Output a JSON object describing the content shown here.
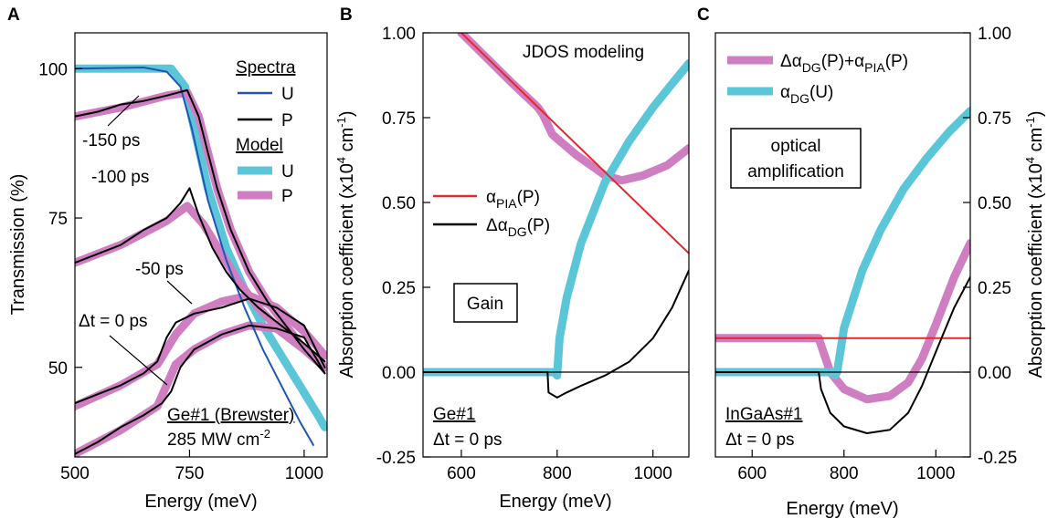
{
  "chart_data": [
    {
      "panel": "A",
      "type": "line",
      "xlabel": "Energy (meV)",
      "ylabel": "Transmission (%)",
      "xlim": [
        500,
        1050
      ],
      "ylim": [
        35,
        106
      ],
      "xticks": [
        500,
        750,
        1000
      ],
      "yticks": [
        50,
        75,
        100
      ],
      "legend": {
        "spectra_title": "Spectra",
        "model_title": "Model",
        "entries": [
          {
            "label": "U",
            "group": "Spectra",
            "color": "#1f56b4"
          },
          {
            "label": "P",
            "group": "Spectra",
            "color": "#000000"
          },
          {
            "label": "U",
            "group": "Model",
            "color": "#5bc6d8"
          },
          {
            "label": "P",
            "group": "Model",
            "color": "#d07ec2"
          }
        ]
      },
      "annotations": [
        "-150 ps",
        "-100 ps",
        "-50 ps",
        "Δt = 0 ps",
        "Ge#1 (Brewster)",
        "285 MW cm-2"
      ],
      "series": [
        {
          "name": "Model U",
          "role": "model",
          "color": "#5bc6d8",
          "x": [
            500,
            650,
            710,
            740,
            760,
            790,
            830,
            870,
            910,
            950,
            990,
            1030,
            1045
          ],
          "y": [
            100,
            100,
            100,
            97,
            90,
            80,
            70,
            63,
            57,
            52,
            47,
            42,
            40
          ]
        },
        {
          "name": "Spectrum U",
          "role": "spectrum",
          "color": "#1f56b4",
          "x": [
            500,
            650,
            700,
            730,
            755,
            790,
            830,
            870,
            910,
            950,
            990,
            1020
          ],
          "y": [
            100,
            100.2,
            99.5,
            97,
            90,
            78,
            68,
            60,
            53,
            47,
            41,
            37
          ]
        },
        {
          "name": "Model P -150 ps",
          "role": "model",
          "color": "#d07ec2",
          "x": [
            500,
            600,
            700,
            745,
            770,
            790,
            810,
            840,
            880,
            920,
            960,
            1000,
            1045
          ],
          "y": [
            92,
            93.5,
            95.5,
            96,
            92,
            86,
            80,
            73,
            66,
            61,
            57,
            53,
            50
          ]
        },
        {
          "name": "Spectrum P -150 ps",
          "role": "spectrum",
          "color": "#000000",
          "x": [
            500,
            550,
            600,
            650,
            700,
            745,
            770,
            790,
            810,
            840,
            880,
            920,
            960,
            1000,
            1045
          ],
          "y": [
            92,
            92.8,
            94,
            94.6,
            95.5,
            96.4,
            92,
            86,
            80,
            73,
            66,
            61,
            57,
            53,
            49
          ]
        },
        {
          "name": "Model P -100 ps",
          "role": "model",
          "color": "#d07ec2",
          "x": [
            500,
            600,
            700,
            745,
            780,
            820,
            860,
            900,
            950,
            1000,
            1045
          ],
          "y": [
            67.5,
            70.5,
            74.5,
            77,
            74,
            69,
            64,
            60,
            56,
            53,
            50
          ]
        },
        {
          "name": "Spectrum P -100 ps",
          "role": "spectrum",
          "color": "#000000",
          "x": [
            500,
            550,
            600,
            650,
            700,
            730,
            750,
            770,
            800,
            830,
            860,
            900,
            950,
            1000,
            1045
          ],
          "y": [
            67.5,
            69,
            70.5,
            73,
            75,
            77.5,
            80,
            75.5,
            70,
            66,
            63,
            60,
            57,
            54,
            51
          ]
        },
        {
          "name": "Model P -50 ps",
          "role": "model",
          "color": "#d07ec2",
          "x": [
            500,
            600,
            680,
            720,
            760,
            820,
            880,
            940,
            1000,
            1045
          ],
          "y": [
            43.5,
            47,
            50.5,
            55.5,
            59,
            61,
            62,
            60,
            56,
            52
          ]
        },
        {
          "name": "Spectrum P -50 ps",
          "role": "spectrum",
          "color": "#000000",
          "x": [
            500,
            550,
            600,
            650,
            680,
            700,
            720,
            760,
            820,
            880,
            940,
            1000,
            1045
          ],
          "y": [
            44,
            45.5,
            47,
            49,
            51,
            55,
            57.5,
            59,
            60,
            61.5,
            60,
            57,
            50
          ]
        },
        {
          "name": "Model P 0 ps",
          "role": "model",
          "color": "#d07ec2",
          "x": [
            500,
            600,
            680,
            720,
            760,
            820,
            880,
            940,
            1000,
            1045
          ],
          "y": [
            35.5,
            39.5,
            43.5,
            50.5,
            53,
            55.5,
            57,
            56.5,
            53,
            50
          ]
        },
        {
          "name": "Spectrum P 0 ps",
          "role": "spectrum",
          "color": "#000000",
          "x": [
            500,
            550,
            600,
            650,
            690,
            710,
            730,
            760,
            820,
            880,
            940,
            1000,
            1045
          ],
          "y": [
            35.5,
            37.5,
            40,
            42,
            44,
            46,
            50,
            53,
            55.5,
            57,
            56.5,
            55,
            49
          ]
        }
      ]
    },
    {
      "panel": "B",
      "type": "line",
      "xlabel": "Energy (meV)",
      "ylabel": "Absorption coefficient (x10⁴ cm⁻¹)",
      "xlim": [
        520,
        1075
      ],
      "ylim": [
        -0.25,
        1.0
      ],
      "xticks": [
        600,
        800,
        1000
      ],
      "yticks": [
        -0.25,
        0.0,
        0.25,
        0.5,
        0.75,
        1.0
      ],
      "ytick_labels": [
        "-0.25",
        "0.00",
        "0.25",
        "0.50",
        "0.75",
        "1.00"
      ],
      "annotations": [
        "JDOS modeling",
        "Gain",
        "Ge#1",
        "Δt = 0 ps"
      ],
      "legend": [
        {
          "label": "αPIA(P)",
          "color": "#e8262b"
        },
        {
          "label": "ΔαDG(P)",
          "color": "#000000"
        }
      ],
      "series": [
        {
          "name": "zero line",
          "color": "#000000",
          "x": [
            520,
            1075
          ],
          "y": [
            0,
            0
          ]
        },
        {
          "name": "αPIA(P)",
          "color": "#e8262b",
          "x": [
            600,
            1075
          ],
          "y": [
            1.0,
            0.35
          ]
        },
        {
          "name": "ΔαDG(P)",
          "color": "#000000",
          "x": [
            520,
            780,
            782,
            800,
            820,
            850,
            900,
            950,
            1000,
            1040,
            1075
          ],
          "y": [
            0,
            0,
            -0.06,
            -0.075,
            -0.06,
            -0.04,
            -0.01,
            0.03,
            0.1,
            0.19,
            0.3
          ]
        },
        {
          "name": "Δα_DG(P)+α_PIA(P)",
          "color": "#d07ec2",
          "x": [
            600,
            700,
            760,
            770,
            790,
            840,
            900,
            935,
            980,
            1030,
            1075
          ],
          "y": [
            1.0,
            0.86,
            0.78,
            0.76,
            0.7,
            0.64,
            0.58,
            0.565,
            0.58,
            0.61,
            0.66
          ]
        },
        {
          "name": "αDG(U)",
          "color": "#5bc6d8",
          "x": [
            520,
            795,
            800,
            805,
            820,
            850,
            900,
            950,
            1000,
            1040,
            1075
          ],
          "y": [
            0,
            0,
            -0.01,
            0.1,
            0.22,
            0.38,
            0.56,
            0.68,
            0.78,
            0.85,
            0.91
          ]
        }
      ]
    },
    {
      "panel": "C",
      "type": "line",
      "xlabel": "Energy (meV)",
      "ylabel": "Absorption coefficient (x10⁴ cm⁻¹)",
      "xlim": [
        520,
        1075
      ],
      "ylim": [
        -0.25,
        1.0
      ],
      "xticks": [
        600,
        800,
        1000
      ],
      "yticks": [
        -0.25,
        0.0,
        0.25,
        0.5,
        0.75,
        1.0
      ],
      "ytick_labels": [
        "-0.25",
        "0.00",
        "0.25",
        "0.50",
        "0.75",
        "1.00"
      ],
      "annotations": [
        "optical",
        "amplification",
        "InGaAs#1",
        "Δt = 0 ps"
      ],
      "legend": [
        {
          "label": "ΔαDG(P)+αPIA(P)",
          "color": "#d07ec2"
        },
        {
          "label": "αDG(U)",
          "color": "#5bc6d8"
        }
      ],
      "series": [
        {
          "name": "zero line",
          "color": "#000000",
          "x": [
            520,
            1075
          ],
          "y": [
            0,
            0
          ]
        },
        {
          "name": "α_PIA(P)",
          "color": "#e8262b",
          "x": [
            520,
            1075
          ],
          "y": [
            0.1,
            0.1
          ]
        },
        {
          "name": "Δα_DG(P)",
          "color": "#000000",
          "x": [
            520,
            745,
            750,
            770,
            800,
            850,
            900,
            940,
            970,
            1000,
            1040,
            1075
          ],
          "y": [
            0,
            0,
            -0.05,
            -0.12,
            -0.16,
            -0.18,
            -0.17,
            -0.12,
            -0.04,
            0.06,
            0.19,
            0.28
          ]
        },
        {
          "name": "ΔαDG(P)+αPIA(P)",
          "color": "#d07ec2",
          "x": [
            520,
            745,
            750,
            770,
            800,
            850,
            900,
            940,
            970,
            1000,
            1040,
            1075
          ],
          "y": [
            0.1,
            0.1,
            0.08,
            0.0,
            -0.05,
            -0.08,
            -0.07,
            -0.03,
            0.04,
            0.14,
            0.28,
            0.38
          ]
        },
        {
          "name": "αDG(U)",
          "color": "#5bc6d8",
          "x": [
            520,
            775,
            780,
            785,
            800,
            840,
            880,
            930,
            980,
            1030,
            1075
          ],
          "y": [
            0,
            0,
            -0.01,
            0.0,
            0.13,
            0.3,
            0.42,
            0.54,
            0.63,
            0.71,
            0.77
          ]
        }
      ]
    }
  ]
}
